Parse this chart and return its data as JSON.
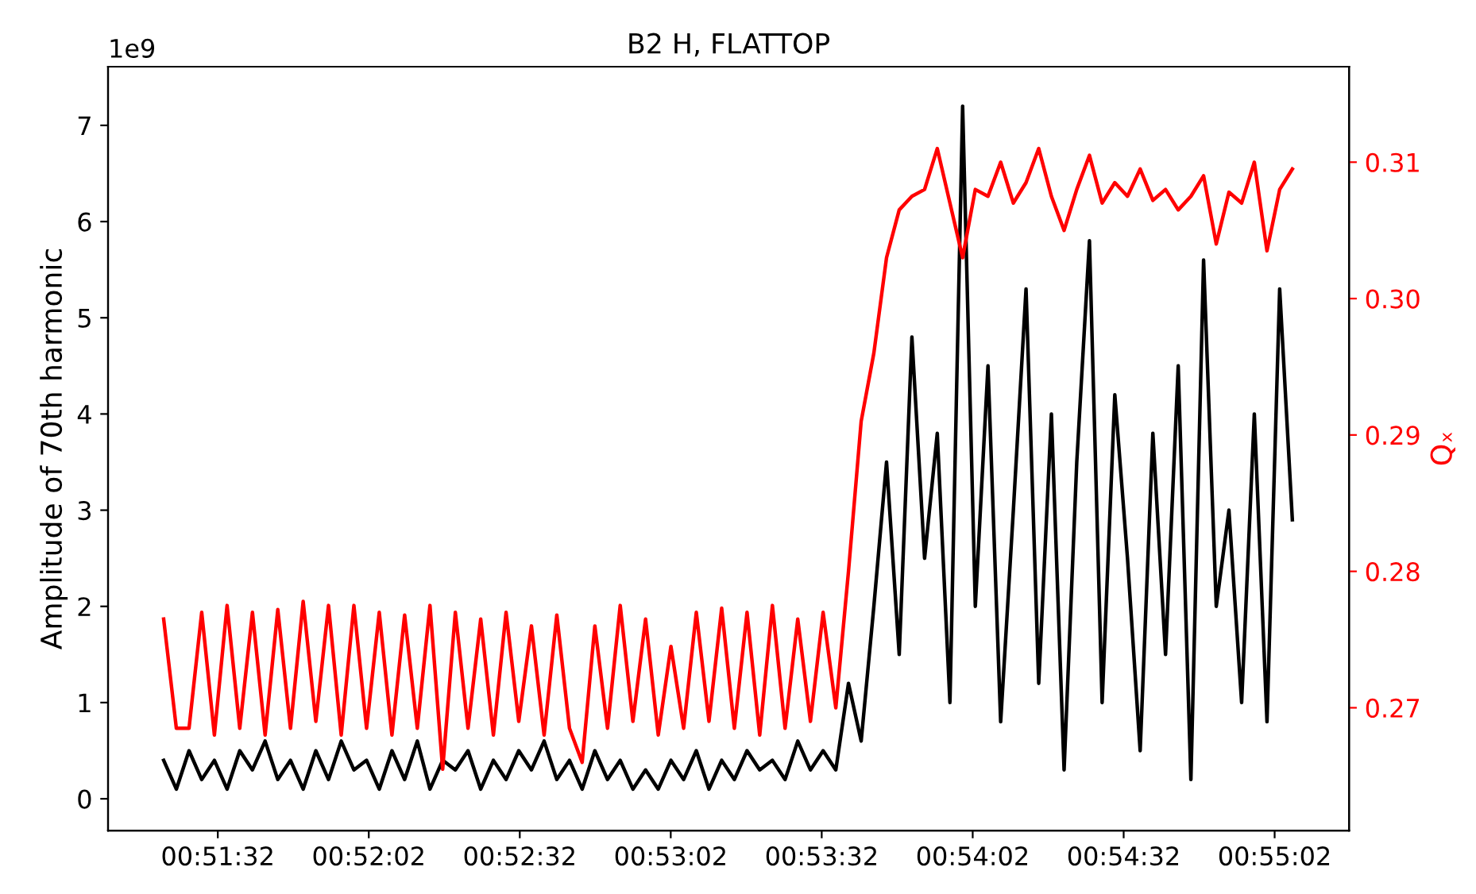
{
  "chart_data": {
    "type": "line",
    "title": "B2 H, FLATTOP",
    "ylabel": "Amplitude of 70th harmonic",
    "y2label": "Qₓ",
    "annotations": [
      "1e9"
    ],
    "x": [
      0.8559,
      0.8566,
      0.8573,
      0.858,
      0.8587,
      0.8594,
      0.8601,
      0.8608,
      0.8615,
      0.8622,
      0.8629,
      0.8636,
      0.8643,
      0.865,
      0.8657,
      0.8664,
      0.8671,
      0.8678,
      0.8685,
      0.8692,
      0.8699,
      0.8706,
      0.8713,
      0.872,
      0.8727,
      0.8734,
      0.8741,
      0.8748,
      0.8755,
      0.8762,
      0.8769,
      0.8776,
      0.8783,
      0.879,
      0.8797,
      0.8804,
      0.8811,
      0.8818,
      0.8825,
      0.8832,
      0.8839,
      0.8846,
      0.8853,
      0.886,
      0.8867,
      0.8874,
      0.8881,
      0.8888,
      0.8895,
      0.8902,
      0.8909,
      0.8916,
      0.8923,
      0.893,
      0.8937,
      0.8944,
      0.8951,
      0.8958,
      0.8965,
      0.8972,
      0.8979,
      0.8986,
      0.8993,
      0.9,
      0.9007,
      0.9014,
      0.9021,
      0.9028,
      0.9035,
      0.9042,
      0.9049,
      0.9056,
      0.9063,
      0.907,
      0.9077,
      0.9084,
      0.9091,
      0.9098,
      0.9105,
      0.9112,
      0.9119,
      0.9126,
      0.9133,
      0.914,
      0.9147,
      0.9154,
      0.9161,
      0.9168,
      0.9175,
      0.9182
    ],
    "series": [
      {
        "color": "#000000",
        "values": [
          0.4,
          0.1,
          0.5,
          0.2,
          0.4,
          0.1,
          0.5,
          0.3,
          0.6,
          0.2,
          0.4,
          0.1,
          0.5,
          0.2,
          0.6,
          0.3,
          0.4,
          0.1,
          0.5,
          0.2,
          0.6,
          0.1,
          0.4,
          0.3,
          0.5,
          0.1,
          0.4,
          0.2,
          0.5,
          0.3,
          0.6,
          0.2,
          0.4,
          0.1,
          0.5,
          0.2,
          0.4,
          0.1,
          0.3,
          0.1,
          0.4,
          0.2,
          0.5,
          0.1,
          0.4,
          0.2,
          0.5,
          0.3,
          0.4,
          0.2,
          0.6,
          0.3,
          0.5,
          0.3,
          1.2,
          0.6,
          2.0,
          3.5,
          1.5,
          4.8,
          2.5,
          3.8,
          1.0,
          7.2,
          2.0,
          4.5,
          0.8,
          3.0,
          5.3,
          1.2,
          4.0,
          0.3,
          3.5,
          5.8,
          1.0,
          4.2,
          2.5,
          0.5,
          3.8,
          1.5,
          4.5,
          0.2,
          5.6,
          2.0,
          3.0,
          1.0,
          4.0,
          0.8,
          5.3,
          2.9
        ]
      },
      {
        "color": "#ff0000",
        "axis": "y2",
        "values": [
          0.2765,
          0.2685,
          0.2685,
          0.277,
          0.268,
          0.2775,
          0.2685,
          0.277,
          0.268,
          0.2772,
          0.2685,
          0.2778,
          0.269,
          0.2775,
          0.268,
          0.2775,
          0.2685,
          0.277,
          0.268,
          0.2768,
          0.2685,
          0.2775,
          0.2655,
          0.277,
          0.2685,
          0.2765,
          0.268,
          0.277,
          0.269,
          0.276,
          0.268,
          0.2768,
          0.2685,
          0.266,
          0.276,
          0.2685,
          0.2775,
          0.269,
          0.2765,
          0.268,
          0.2745,
          0.2685,
          0.277,
          0.269,
          0.2773,
          0.2685,
          0.277,
          0.268,
          0.2775,
          0.2685,
          0.2765,
          0.269,
          0.277,
          0.27,
          0.28,
          0.291,
          0.296,
          0.303,
          0.3065,
          0.3075,
          0.308,
          0.311,
          0.307,
          0.303,
          0.308,
          0.3075,
          0.31,
          0.307,
          0.3085,
          0.311,
          0.3075,
          0.305,
          0.308,
          0.3105,
          0.307,
          0.3085,
          0.3075,
          0.3095,
          0.3072,
          0.308,
          0.3065,
          0.3075,
          0.309,
          0.304,
          0.3078,
          0.307,
          0.31,
          0.3035,
          0.308,
          0.3095
        ]
      }
    ],
    "xlim": [
      0.85283,
      0.92133
    ],
    "xticks": [
      {
        "value": 0.858889,
        "label": "00:51:32"
      },
      {
        "value": 0.867222,
        "label": "00:52:02"
      },
      {
        "value": 0.875556,
        "label": "00:52:32"
      },
      {
        "value": 0.883889,
        "label": "00:53:02"
      },
      {
        "value": 0.892222,
        "label": "00:53:32"
      },
      {
        "value": 0.900556,
        "label": "00:54:02"
      },
      {
        "value": 0.908889,
        "label": "00:54:32"
      },
      {
        "value": 0.917222,
        "label": "00:55:02"
      }
    ],
    "ylim": [
      -0.33,
      7.61
    ],
    "yticks": [
      0,
      1,
      2,
      3,
      4,
      5,
      6,
      7
    ],
    "y2lim": [
      0.261,
      0.317
    ],
    "y2ticks": [
      0.27,
      0.28,
      0.29,
      {
        "value": 0.3,
        "label": "0.30"
      },
      0.31
    ],
    "grid": false,
    "legend": false
  }
}
